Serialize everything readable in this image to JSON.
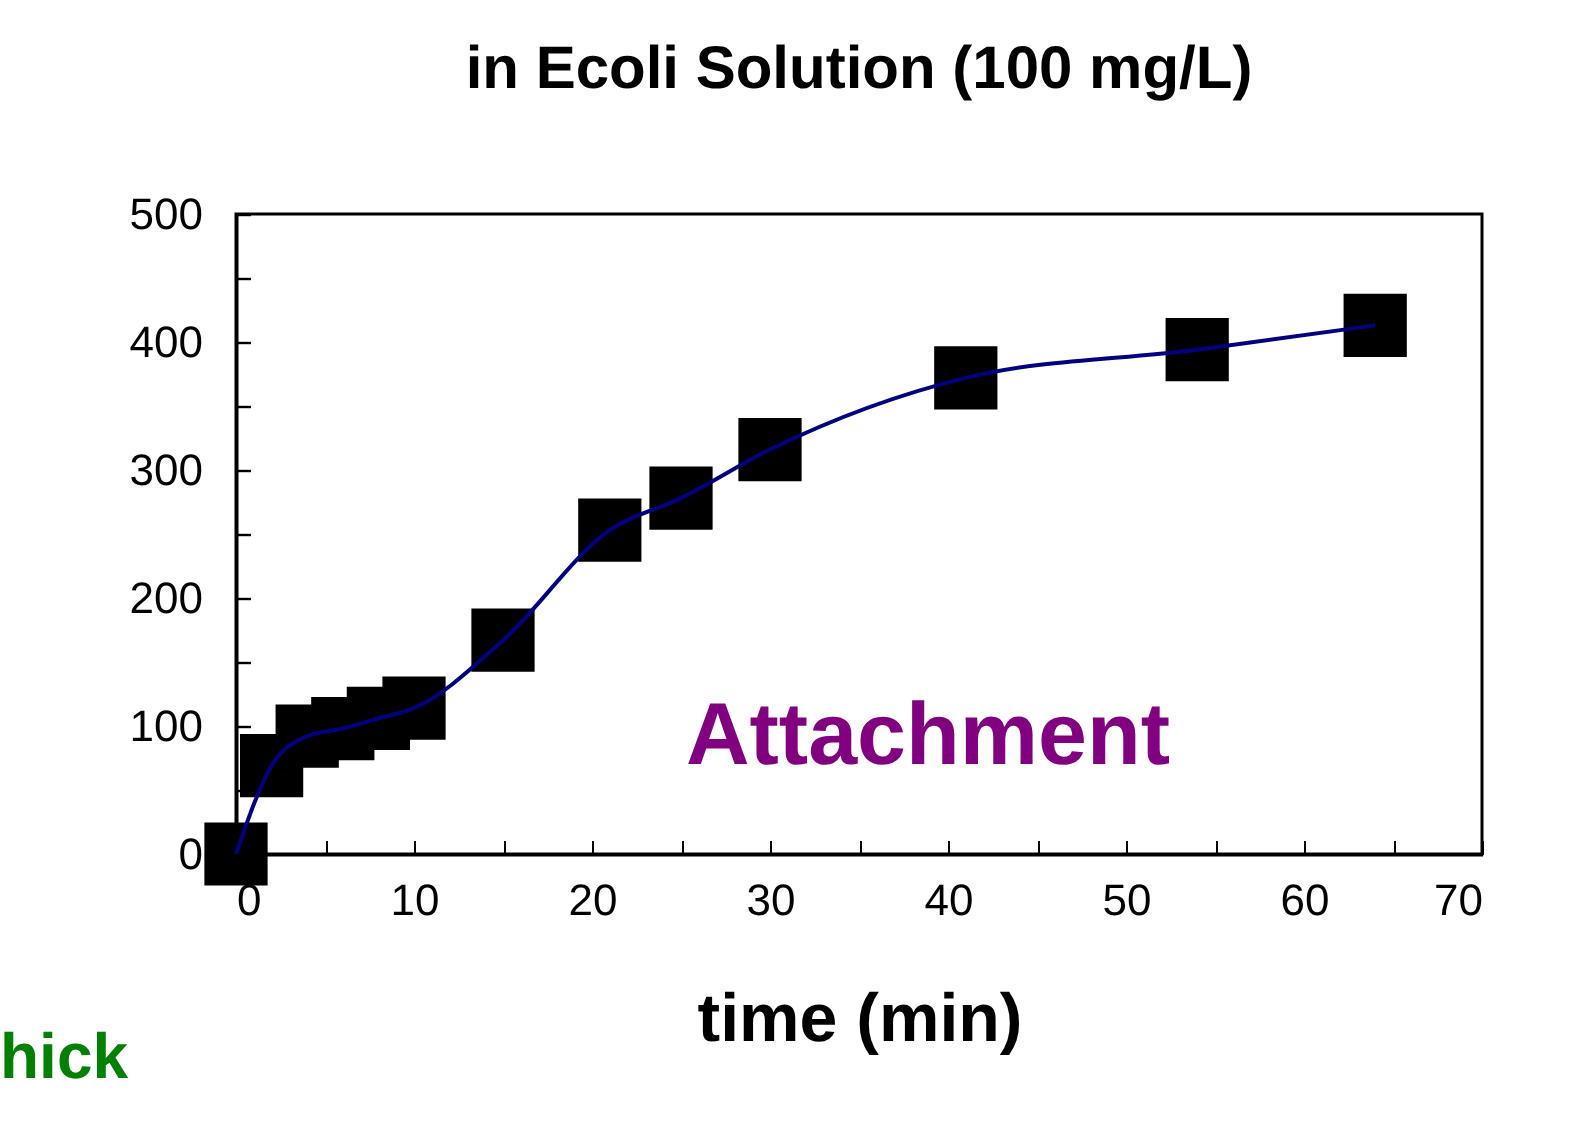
{
  "chart_data": {
    "type": "scatter",
    "title": "in Ecoli Solution (100 mg/L)",
    "xlabel": "time (min)",
    "x": [
      0,
      2,
      4,
      6,
      8,
      10,
      15,
      21,
      25,
      30,
      41,
      54,
      64
    ],
    "series": [
      {
        "color": "#000000",
        "values": [
          0,
          69,
          92,
          98,
          106,
          114,
          167,
          253,
          278,
          316,
          372,
          394,
          413
        ]
      },
      {
        "type": "line",
        "color": "#000080",
        "marker": "none",
        "values": [
          0,
          69,
          92,
          98,
          106,
          114,
          167,
          253,
          278,
          316,
          372,
          394,
          413
        ]
      }
    ],
    "marker": "square",
    "xlim": [
      0,
      70
    ],
    "xticks": [
      0,
      {
        "value": 5,
        "label": null
      },
      10,
      {
        "value": 15,
        "label": null
      },
      20,
      {
        "value": 25,
        "label": null
      },
      30,
      {
        "value": 35,
        "label": null
      },
      40,
      {
        "value": 45,
        "label": null
      },
      50,
      {
        "value": 55,
        "label": null
      },
      60,
      {
        "value": 65,
        "label": null
      },
      70
    ],
    "ylim": [
      0,
      500
    ],
    "yticks": [
      0,
      {
        "value": 50,
        "label": null
      },
      100,
      {
        "value": 150,
        "label": null
      },
      200,
      {
        "value": 250,
        "label": null
      },
      300,
      {
        "value": 350,
        "label": null
      },
      400,
      {
        "value": 450,
        "label": null
      },
      500
    ],
    "grid": false,
    "annotations": [
      "Attachment",
      "hick"
    ]
  }
}
